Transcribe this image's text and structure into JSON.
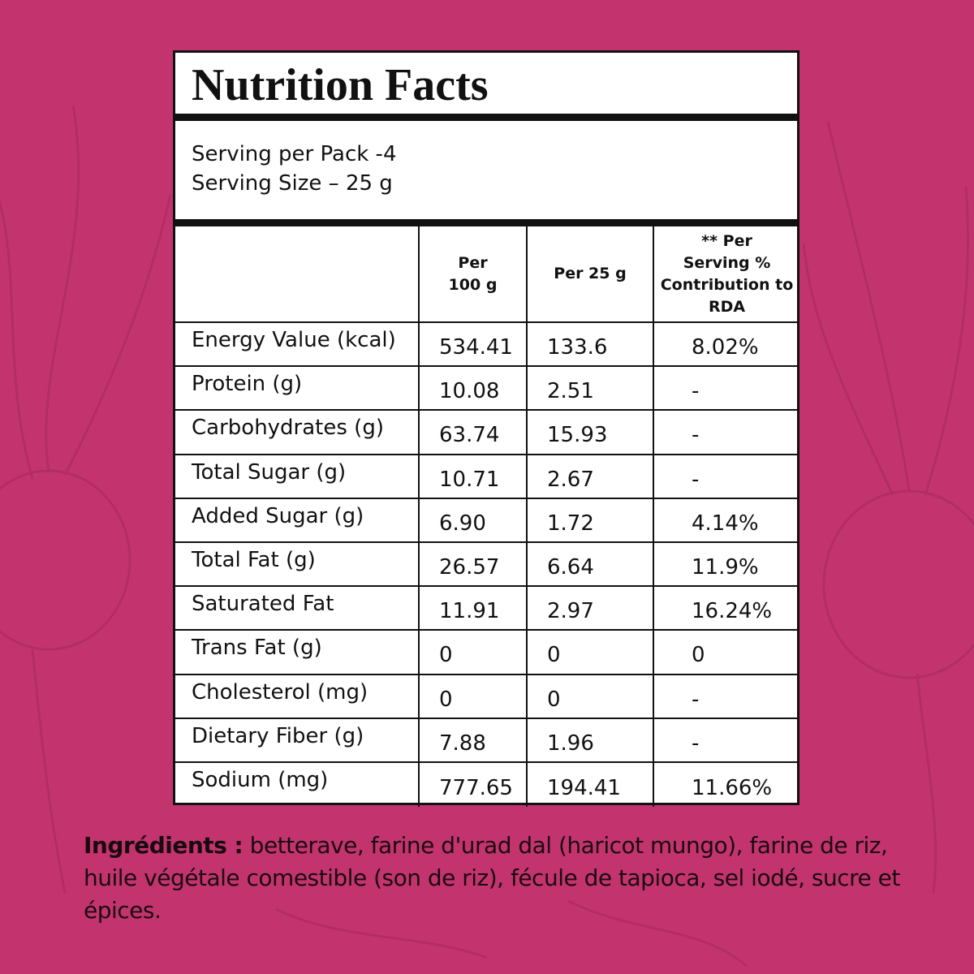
{
  "title": "Nutrition Facts",
  "serving": [
    "Serving per Pack -4",
    "Serving Size – 25 g"
  ],
  "table": {
    "header": [
      [
        "Per",
        "100 g"
      ],
      [
        "Per 25 g"
      ],
      [
        "** Per",
        "Serving %",
        "Contribution to",
        "RDA"
      ]
    ],
    "rows": [
      [
        "Energy Value (kcal)",
        "534.41",
        "133.6",
        "8.02%"
      ],
      [
        "Protein (g)",
        "10.08",
        "2.51",
        "-"
      ],
      [
        "Carbohydrates (g)",
        "63.74",
        "15.93",
        "-"
      ],
      [
        "Total Sugar (g)",
        "10.71",
        "2.67",
        "-"
      ],
      [
        "Added Sugar (g)",
        "6.90",
        "1.72",
        "4.14%"
      ],
      [
        "Total Fat (g)",
        "26.57",
        "6.64",
        "11.9%"
      ],
      [
        "Saturated Fat",
        "11.91",
        "2.97",
        "16.24%"
      ],
      [
        "Trans Fat (g)",
        "0",
        "0",
        "0"
      ],
      [
        "Cholesterol (mg)",
        "0",
        "0",
        "-"
      ],
      [
        "Dietary Fiber (g)",
        "7.88",
        "1.96",
        "-"
      ],
      [
        "Sodium (mg)",
        "777.65",
        "194.41",
        "11.66%"
      ]
    ]
  },
  "ingredients": {
    "label": "Ingrédients :",
    "text": "betterave, farine d'urad dal (haricot mungo), farine de riz, huile végétale comestible (son de riz), fécule de tapioca, sel iodé, sucre et épices."
  }
}
